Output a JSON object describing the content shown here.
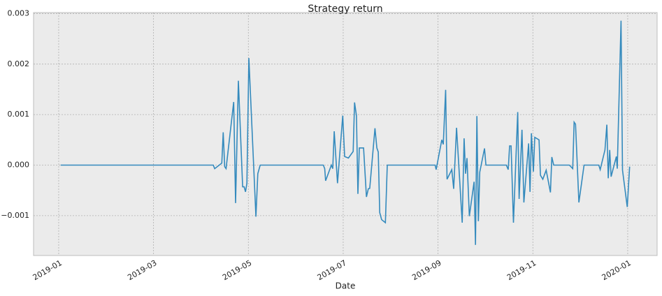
{
  "chart_data": {
    "type": "line",
    "title": "Strategy return",
    "xlabel": "Date",
    "color": "#348abd",
    "grid": true,
    "xlim": [
      -0.53,
      12.62
    ],
    "xticks": [
      {
        "value": 0,
        "label": "2019-01"
      },
      {
        "value": 2,
        "label": "2019-03"
      },
      {
        "value": 4,
        "label": "2019-05"
      },
      {
        "value": 6,
        "label": "2019-07"
      },
      {
        "value": 8,
        "label": "2019-09"
      },
      {
        "value": 10,
        "label": "2019-11"
      },
      {
        "value": 12,
        "label": "2020-01"
      }
    ],
    "ylim": [
      -0.00179,
      0.00302
    ],
    "yticks": [
      {
        "value": -0.001,
        "label": "−0.001"
      },
      {
        "value": 0,
        "label": "0.000"
      },
      {
        "value": 0.001,
        "label": "0.001"
      },
      {
        "value": 0.002,
        "label": "0.002"
      },
      {
        "value": 0.003,
        "label": "0.003"
      }
    ],
    "x": [
      0.04,
      3.26,
      3.29,
      3.44,
      3.47,
      3.5,
      3.53,
      3.69,
      3.73,
      3.79,
      3.88,
      3.91,
      3.94,
      3.97,
      4.01,
      4.16,
      4.2,
      4.25,
      5.58,
      5.61,
      5.63,
      5.75,
      5.78,
      5.81,
      5.88,
      5.99,
      6.03,
      6.11,
      6.21,
      6.24,
      6.28,
      6.31,
      6.34,
      6.43,
      6.49,
      6.53,
      6.56,
      6.67,
      6.71,
      6.74,
      6.77,
      6.81,
      6.89,
      6.93,
      7.94,
      7.96,
      8.08,
      8.11,
      8.16,
      8.19,
      8.29,
      8.33,
      8.39,
      8.51,
      8.55,
      8.58,
      8.61,
      8.66,
      8.76,
      8.79,
      8.82,
      8.85,
      8.88,
      8.98,
      9.01,
      9.44,
      9.48,
      9.51,
      9.54,
      9.59,
      9.68,
      9.71,
      9.77,
      9.81,
      9.91,
      9.94,
      9.97,
      10.01,
      10.04,
      10.13,
      10.16,
      10.21,
      10.28,
      10.37,
      10.4,
      10.44,
      10.77,
      10.84,
      10.87,
      10.9,
      10.97,
      11.08,
      11.39,
      11.42,
      11.52,
      11.56,
      11.59,
      11.62,
      11.65,
      11.76,
      11.78,
      11.86,
      11.89,
      11.99,
      12.04
    ],
    "values": [
      0,
      0,
      -7e-05,
      4e-05,
      0.00065,
      -3e-05,
      -7e-05,
      0.00125,
      -0.00075,
      0.00167,
      -0.00043,
      -0.00043,
      -0.00053,
      -0.00036,
      0.00212,
      -0.00102,
      -0.00017,
      0,
      0,
      -7e-05,
      -0.00031,
      0,
      -7e-05,
      0.00067,
      -0.00036,
      0.00098,
      0.00017,
      0.00014,
      0.00027,
      0.00124,
      0.00098,
      -0.00057,
      0.00034,
      0.00034,
      -0.00063,
      -0.00047,
      -0.00046,
      0.00073,
      0.00034,
      0.00026,
      -0.00094,
      -0.00108,
      -0.00114,
      0,
      0,
      -9e-05,
      0.0005,
      0.00041,
      0.00149,
      -0.00028,
      -9e-05,
      -0.00047,
      0.00074,
      -0.00114,
      0.00053,
      -0.00017,
      0.00014,
      -0.00101,
      -0.00033,
      -0.00158,
      0.00097,
      -0.00111,
      -0.00014,
      0.00033,
      0,
      0,
      -9e-05,
      0.00038,
      0.00038,
      -0.00114,
      0.00105,
      -0.00067,
      0.0007,
      -0.00074,
      0.00043,
      -0.00053,
      0.00063,
      -0.00013,
      0.00055,
      0.0005,
      -0.0002,
      -0.00028,
      -0.0001,
      -0.00054,
      0.00016,
      0,
      0,
      -7e-05,
      0.00085,
      0.00081,
      -0.00074,
      0,
      0,
      -9e-05,
      0.0003,
      0.0008,
      -0.00026,
      0.0003,
      -0.00023,
      0.00017,
      -7e-05,
      0.00286,
      -0.0001,
      -0.00083,
      -3e-05
    ]
  }
}
